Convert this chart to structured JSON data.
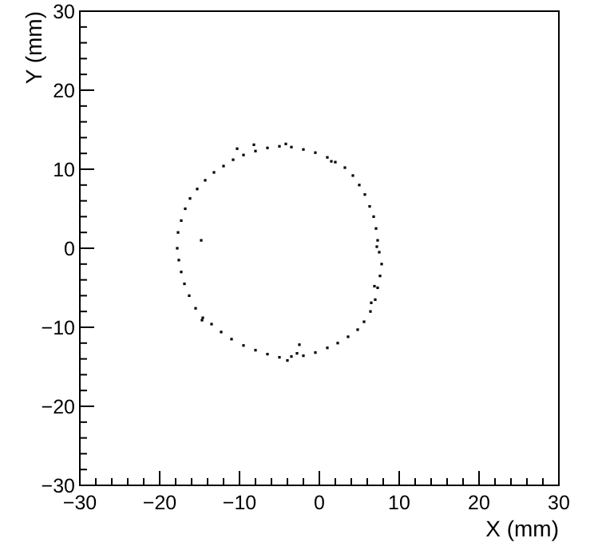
{
  "chart_data": {
    "type": "scatter",
    "xlabel": "X (mm)",
    "ylabel": "Y (mm)",
    "xlim": [
      -30,
      30
    ],
    "ylim": [
      -30,
      30
    ],
    "xticks": [
      {
        "value": -30,
        "label": "−30"
      },
      {
        "value": -28,
        "label": null
      },
      {
        "value": -26,
        "label": null
      },
      {
        "value": -24,
        "label": null
      },
      {
        "value": -22,
        "label": null
      },
      {
        "value": -20,
        "label": "−20"
      },
      {
        "value": -18,
        "label": null
      },
      {
        "value": -16,
        "label": null
      },
      {
        "value": -14,
        "label": null
      },
      {
        "value": -12,
        "label": null
      },
      {
        "value": -10,
        "label": "−10"
      },
      {
        "value": -8,
        "label": null
      },
      {
        "value": -6,
        "label": null
      },
      {
        "value": -4,
        "label": null
      },
      {
        "value": -2,
        "label": null
      },
      0,
      {
        "value": 2,
        "label": null
      },
      {
        "value": 4,
        "label": null
      },
      {
        "value": 6,
        "label": null
      },
      {
        "value": 8,
        "label": null
      },
      10,
      {
        "value": 12,
        "label": null
      },
      {
        "value": 14,
        "label": null
      },
      {
        "value": 16,
        "label": null
      },
      {
        "value": 18,
        "label": null
      },
      20,
      {
        "value": 22,
        "label": null
      },
      {
        "value": 24,
        "label": null
      },
      {
        "value": 26,
        "label": null
      },
      {
        "value": 28,
        "label": null
      },
      30
    ],
    "yticks": [
      {
        "value": -30,
        "label": "−30"
      },
      {
        "value": -28,
        "label": null
      },
      {
        "value": -26,
        "label": null
      },
      {
        "value": -24,
        "label": null
      },
      {
        "value": -22,
        "label": null
      },
      {
        "value": -20,
        "label": "−20"
      },
      {
        "value": -18,
        "label": null
      },
      {
        "value": -16,
        "label": null
      },
      {
        "value": -14,
        "label": null
      },
      {
        "value": -12,
        "label": null
      },
      {
        "value": -10,
        "label": "−10"
      },
      {
        "value": -8,
        "label": null
      },
      {
        "value": -6,
        "label": null
      },
      {
        "value": -4,
        "label": null
      },
      {
        "value": -2,
        "label": null
      },
      0,
      {
        "value": 2,
        "label": null
      },
      {
        "value": 4,
        "label": null
      },
      {
        "value": 6,
        "label": null
      },
      {
        "value": 8,
        "label": null
      },
      10,
      {
        "value": 12,
        "label": null
      },
      {
        "value": 14,
        "label": null
      },
      {
        "value": 16,
        "label": null
      },
      {
        "value": 18,
        "label": null
      },
      20,
      {
        "value": 22,
        "label": null
      },
      {
        "value": 24,
        "label": null
      },
      {
        "value": 26,
        "label": null
      },
      {
        "value": 28,
        "label": null
      },
      30
    ],
    "grid": false,
    "marker": "square",
    "series": [
      {
        "color": "#000000",
        "x": [
          -17.8,
          -17.7,
          -17.3,
          -16.8,
          -16.2,
          -15.3,
          -14.3,
          -13.2,
          -12,
          -10.8,
          -9.5,
          -8,
          -6.5,
          -5,
          -3.5,
          -2,
          -0.5,
          1,
          2,
          3.2,
          4.2,
          5,
          5.7,
          6.3,
          6.8,
          7.1,
          7.3,
          7.5,
          7.8,
          7.6,
          7.3,
          7,
          6.4,
          5.6,
          4.8,
          3.6,
          2.3,
          1,
          -0.5,
          -2,
          -3.5,
          -5,
          -6.5,
          -8,
          -9.5,
          -11,
          -12.3,
          -13.5,
          -14.6,
          -15.5,
          -16.3,
          -16.9,
          -17.3,
          -17.6,
          -4.2,
          1.5,
          7.2,
          -4,
          -14.7,
          -2.8,
          6.9,
          -14.8,
          -2.5,
          6.5,
          -10.3,
          -8.2
        ],
        "values": [
          0,
          2,
          3.5,
          5,
          6.3,
          7.5,
          8.6,
          9.6,
          10.4,
          11.2,
          11.8,
          12.3,
          12.7,
          12.9,
          12.8,
          12.5,
          12.1,
          11.5,
          10.9,
          10.2,
          9.2,
          8,
          6.8,
          5.3,
          4,
          2.5,
          1,
          -0.5,
          -2,
          -3.5,
          -5,
          -6.5,
          -8,
          -9.3,
          -10.3,
          -11.2,
          -12,
          -12.6,
          -13.2,
          -13.6,
          -13.7,
          -13.8,
          -13.4,
          -12.9,
          -12.3,
          -11.5,
          -10.6,
          -9.6,
          -8.8,
          -7.6,
          -6,
          -4.5,
          -3,
          -1.5,
          13.2,
          11,
          0.2,
          -14.2,
          -9.1,
          -13.3,
          -4.8,
          1,
          -12.2,
          -6.9,
          12.6,
          13.1
        ]
      }
    ]
  }
}
